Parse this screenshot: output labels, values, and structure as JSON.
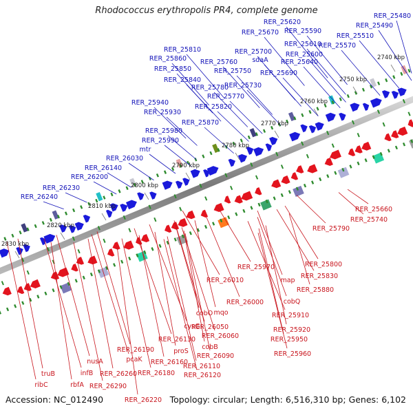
{
  "title": "Rhodococcus erythropolis PR4, complete genome",
  "footer": {
    "accession": "Accession: NC_012490",
    "summary": "Topology: circular; Length: 6,516,310 bp; Genes: 6,102"
  },
  "colors": {
    "forward_gene": "#1a1adb",
    "reverse_gene": "#e3141e",
    "forward_label": "#1212b8",
    "reverse_label": "#c8141c",
    "backbone": "#8c8c8c",
    "tick": "#2e8b2e",
    "kbp_label": "#222222"
  },
  "kbp_ticks": [
    "2740 kbp",
    "2750 kbp",
    "2760 kbp",
    "2770 kbp",
    "2780 kbp",
    "2790 kbp",
    "2800 kbp",
    "2810 kbp",
    "2820 kbp",
    "2830 kbp"
  ],
  "forward_genes": [
    "RER_25480",
    "RER_25490",
    "RER_25510",
    "RER_25570",
    "RER_25590",
    "RER_25610",
    "RER_25620",
    "RER_25600",
    "RER_25640",
    "RER_25670",
    "RER_25690",
    "RER_25700",
    "sdaA",
    "RER_25730",
    "RER_25750",
    "RER_25760",
    "RER_25770",
    "RER_25780",
    "RER_25810",
    "RER_25820",
    "RER_25840",
    "RER_25850",
    "RER_25860",
    "RER_25870",
    "RER_25930",
    "RER_25940",
    "RER_25980",
    "RER_25990",
    "mtr",
    "RER_26030",
    "RER_26140",
    "RER_26200",
    "RER_26230",
    "RER_26240"
  ],
  "reverse_genes": [
    "RER_25660",
    "RER_25740",
    "RER_25790",
    "RER_25800",
    "RER_25830",
    "RER_25880",
    "map",
    "cobQ",
    "RER_25970",
    "RER_25910",
    "RER_25920",
    "RER_25950",
    "RER_25960",
    "RER_26000",
    "RER_26010",
    "mqo",
    "cobO",
    "RER_26050",
    "RER_26060",
    "cysG",
    "cobB",
    "RER_26090",
    "RER_26110",
    "RER_26120",
    "RER_26130",
    "proS",
    "RER_26160",
    "RER_26180",
    "RER_26190",
    "pcaK",
    "RER_26220",
    "RER_26260",
    "RER_26290",
    "nusA",
    "infB",
    "rbfA",
    "truB",
    "ribC"
  ]
}
